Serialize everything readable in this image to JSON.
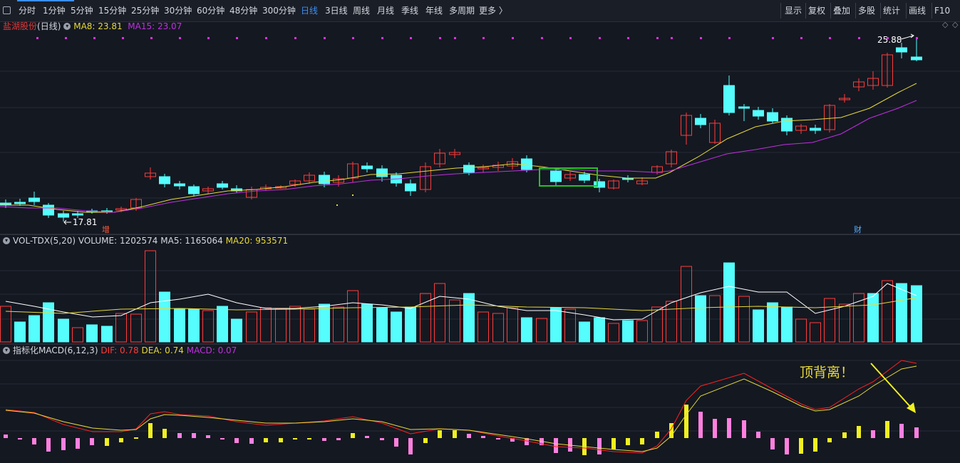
{
  "toolbar": {
    "periods": [
      "分时",
      "1分钟",
      "5分钟",
      "15分钟",
      "25分钟",
      "30分钟",
      "60分钟",
      "48分钟",
      "300分钟",
      "日线",
      "3日线",
      "周线",
      "月线",
      "季线",
      "年线",
      "多周期",
      "更多 〉"
    ],
    "active_period": "日线",
    "right_buttons": [
      "显示",
      "复权",
      "叠加",
      "多股",
      "统计",
      "画线",
      "F10"
    ]
  },
  "price_panel": {
    "stock_name": "盐湖股份",
    "period_label": "(日线)",
    "ma8_label": "MA8: 23.81",
    "ma15_label": "MA15: 23.07",
    "high_label": "25.88",
    "low_label": "17.81",
    "marker_zeng": "增",
    "marker_cai": "财",
    "colors": {
      "up": "#ff3b3b",
      "down": "#55fdfd",
      "ma8": "#e6d93a",
      "ma15": "#c030e0",
      "highlight_box": "#22c322",
      "signal_dots": "#e030e0"
    }
  },
  "volume_panel": {
    "indicator_label": "VOL-TDX(5,20)",
    "volume_label": "VOLUME: 1202574",
    "ma5_label": "MA5: 1165064",
    "ma20_label": "MA20: 953571"
  },
  "macd_panel": {
    "indicator_label": "指标化MACD(6,12,3)",
    "dif_label": "DIF: 0.78",
    "dea_label": "DEA: 0.74",
    "macd_label": "MACD: 0.07",
    "annotation": "顶背离！"
  }
}
